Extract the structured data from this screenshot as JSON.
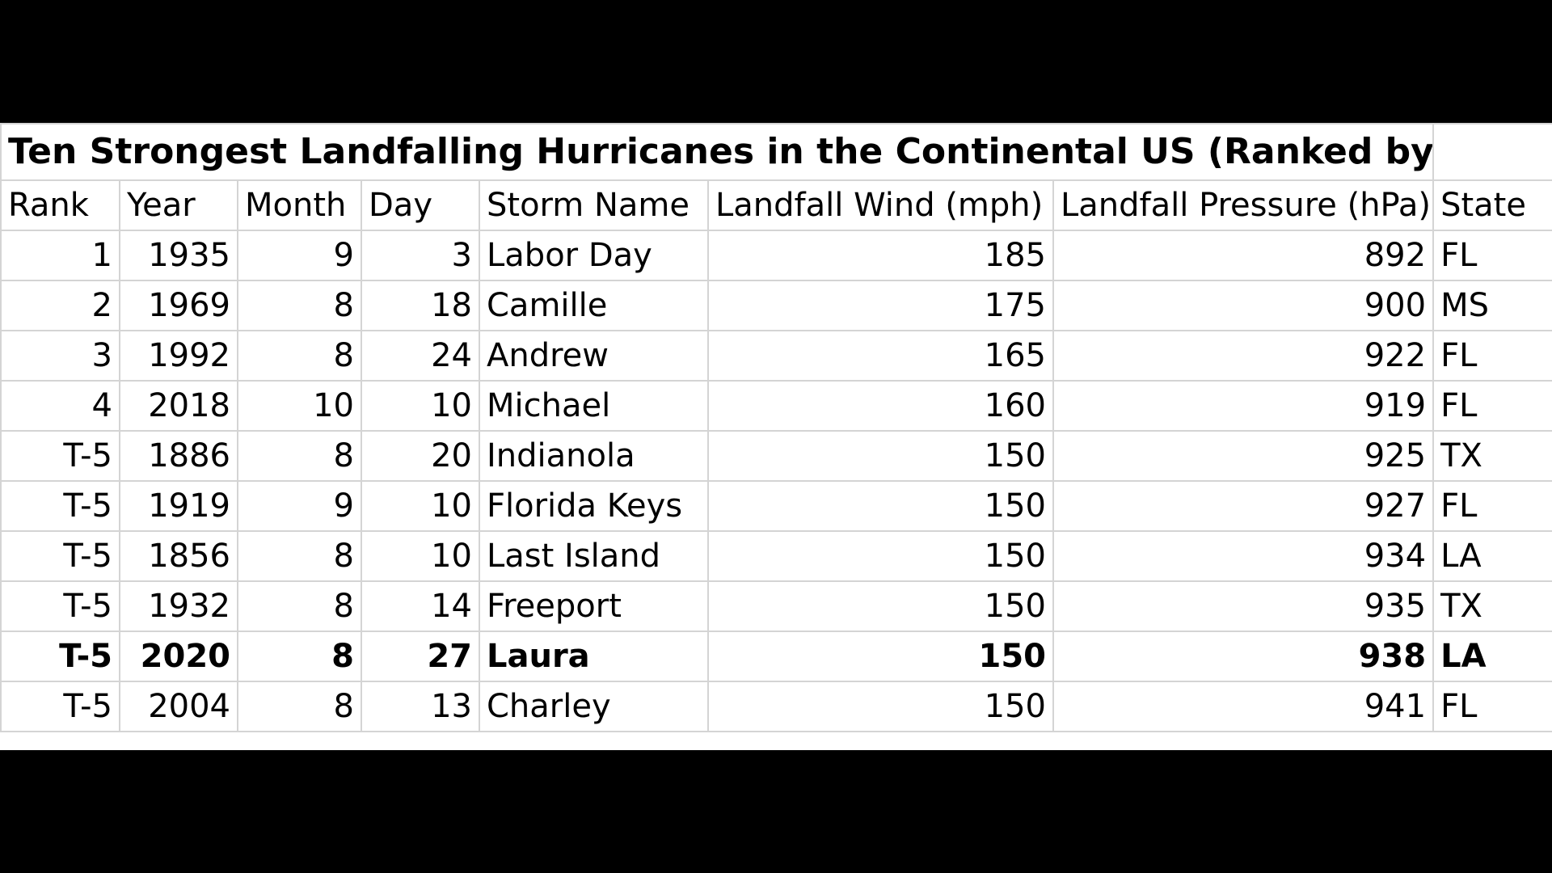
{
  "chart_data": {
    "type": "table",
    "title": "Ten Strongest Landfalling Hurricanes in the Continental US (Ranked by Wind)",
    "columns": [
      "Rank",
      "Year",
      "Month",
      "Day",
      "Storm Name",
      "Landfall Wind (mph)",
      "Landfall Pressure (hPa)",
      "State"
    ],
    "rows": [
      {
        "rank": "1",
        "year": "1935",
        "month": "9",
        "day": "3",
        "name": "Labor Day",
        "wind": "185",
        "pressure": "892",
        "state": "FL",
        "bold": false
      },
      {
        "rank": "2",
        "year": "1969",
        "month": "8",
        "day": "18",
        "name": "Camille",
        "wind": "175",
        "pressure": "900",
        "state": "MS",
        "bold": false
      },
      {
        "rank": "3",
        "year": "1992",
        "month": "8",
        "day": "24",
        "name": "Andrew",
        "wind": "165",
        "pressure": "922",
        "state": "FL",
        "bold": false
      },
      {
        "rank": "4",
        "year": "2018",
        "month": "10",
        "day": "10",
        "name": "Michael",
        "wind": "160",
        "pressure": "919",
        "state": "FL",
        "bold": false
      },
      {
        "rank": "T-5",
        "year": "1886",
        "month": "8",
        "day": "20",
        "name": "Indianola",
        "wind": "150",
        "pressure": "925",
        "state": "TX",
        "bold": false
      },
      {
        "rank": "T-5",
        "year": "1919",
        "month": "9",
        "day": "10",
        "name": "Florida Keys",
        "wind": "150",
        "pressure": "927",
        "state": "FL",
        "bold": false
      },
      {
        "rank": "T-5",
        "year": "1856",
        "month": "8",
        "day": "10",
        "name": "Last Island",
        "wind": "150",
        "pressure": "934",
        "state": "LA",
        "bold": false
      },
      {
        "rank": "T-5",
        "year": "1932",
        "month": "8",
        "day": "14",
        "name": "Freeport",
        "wind": "150",
        "pressure": "935",
        "state": "TX",
        "bold": false
      },
      {
        "rank": "T-5",
        "year": "2020",
        "month": "8",
        "day": "27",
        "name": "Laura",
        "wind": "150",
        "pressure": "938",
        "state": "LA",
        "bold": true
      },
      {
        "rank": "T-5",
        "year": "2004",
        "month": "8",
        "day": "13",
        "name": "Charley",
        "wind": "150",
        "pressure": "941",
        "state": "FL",
        "bold": false
      }
    ]
  }
}
